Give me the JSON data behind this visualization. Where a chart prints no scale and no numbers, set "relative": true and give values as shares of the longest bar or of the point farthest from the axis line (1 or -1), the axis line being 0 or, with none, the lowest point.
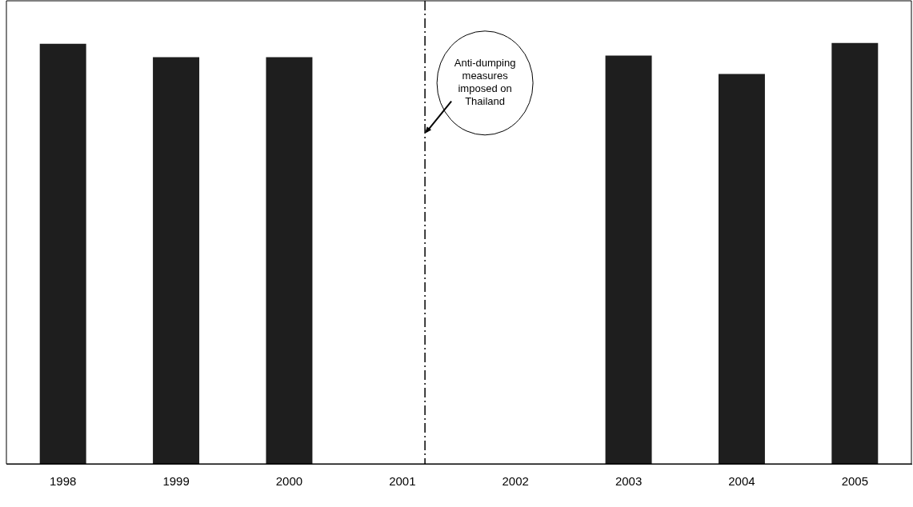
{
  "chart_data": {
    "type": "bar",
    "relative": true,
    "x": [
      1998,
      1999,
      2000,
      2001,
      2002,
      2003,
      2004,
      2005
    ],
    "values": [
      0.998,
      0.966,
      0.966,
      null,
      null,
      0.97,
      0.926,
      1
    ],
    "color": "#1e1e1e",
    "xlim": [
      1997.5,
      2005.5
    ],
    "xticks": [
      1998,
      1999,
      2000,
      2001,
      2002,
      2003,
      2004,
      2005
    ],
    "ref_lines": [
      {
        "axis": "x",
        "value": 2001.2,
        "color": "#000000",
        "line_style": "dashed"
      }
    ],
    "annotations": [
      {
        "text": "Anti-dumping measures imposed on Thailand",
        "x": 2001.2,
        "y": 0.785
      }
    ],
    "grid": false,
    "legend": false
  }
}
